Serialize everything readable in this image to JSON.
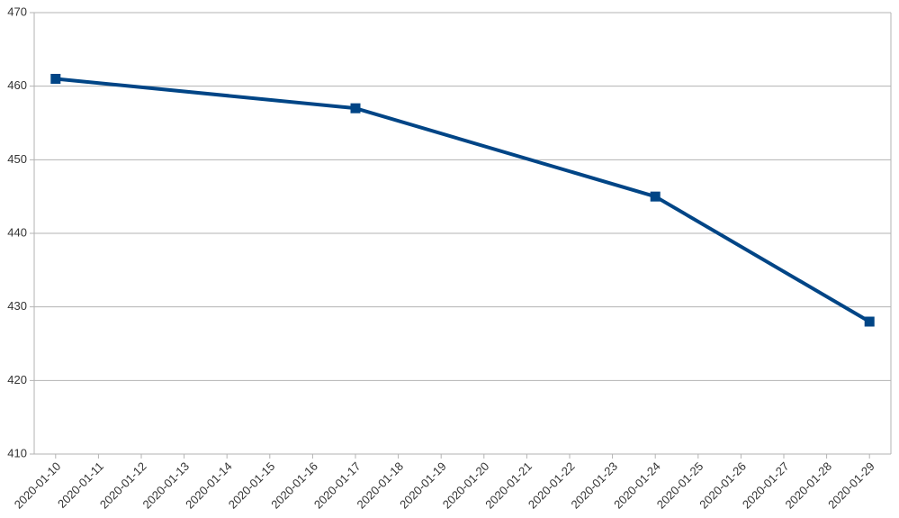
{
  "chart_data": {
    "type": "line",
    "x": [
      "2020-01-10",
      "2020-01-17",
      "2020-01-24",
      "2020-01-29"
    ],
    "series": [
      {
        "color": "#004586",
        "values": [
          461,
          457,
          445,
          428
        ]
      }
    ],
    "xticks": [
      "2020-01-10",
      "2020-01-11",
      "2020-01-12",
      "2020-01-13",
      "2020-01-14",
      "2020-01-15",
      "2020-01-16",
      "2020-01-17",
      "2020-01-18",
      "2020-01-19",
      "2020-01-20",
      "2020-01-21",
      "2020-01-22",
      "2020-01-23",
      "2020-01-24",
      "2020-01-25",
      "2020-01-26",
      "2020-01-27",
      "2020-01-28",
      "2020-01-29"
    ],
    "ylim": [
      410,
      470
    ],
    "yticks": [
      410,
      420,
      430,
      440,
      450,
      460,
      470
    ],
    "grid": true
  }
}
